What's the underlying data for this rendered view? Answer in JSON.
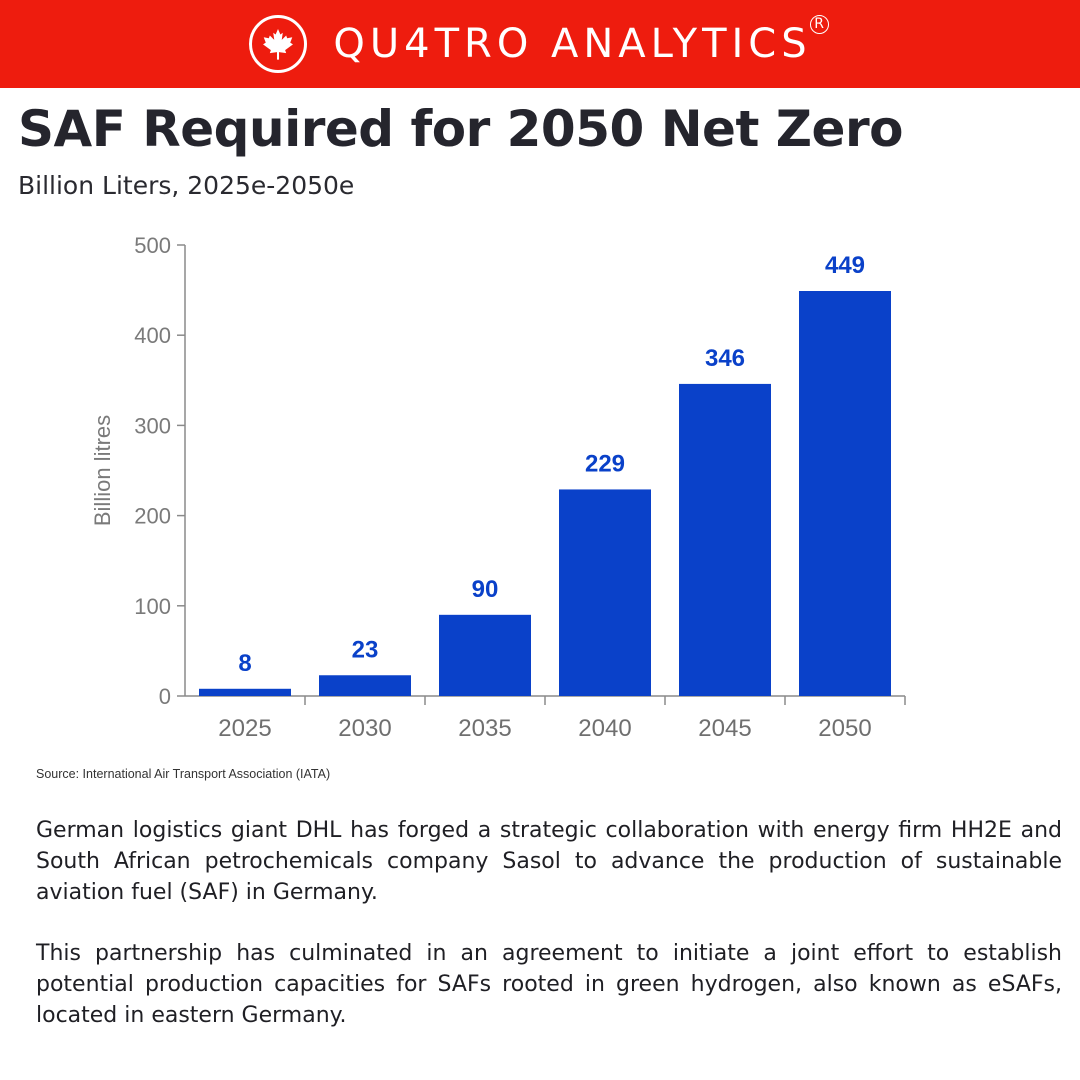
{
  "brand": {
    "name": "QU4TRO ANALYTICS",
    "registered_mark": "R",
    "logo_icon": "maple-leaf-icon"
  },
  "colors": {
    "banner": "#ee1c0e",
    "bar": "#0a41c9",
    "text": "#25252d"
  },
  "title": "SAF Required for 2050 Net Zero",
  "subtitle": "Billion Liters, 2025e-2050e",
  "chart_data": {
    "type": "bar",
    "categories": [
      "2025",
      "2030",
      "2035",
      "2040",
      "2045",
      "2050"
    ],
    "values": [
      8,
      23,
      90,
      229,
      346,
      449
    ],
    "data_labels": [
      "8",
      "23",
      "90",
      "229",
      "346",
      "449"
    ],
    "ylabel": "Billion litres",
    "xlabel": "",
    "ylim": [
      0,
      500
    ],
    "yticks": [
      0,
      100,
      200,
      300,
      400,
      500
    ],
    "grid": false,
    "legend": "none"
  },
  "source": "Source: International Air Transport Association (IATA)",
  "paragraphs": [
    "German logistics giant DHL has forged a strategic collaboration with energy firm HH2E and South African petrochemicals company Sasol to advance the production of sustainable aviation fuel (SAF) in Germany.",
    "This partnership has culminated in an agreement to initiate a joint effort to establish potential production capacities for SAFs rooted in green hydrogen, also known as eSAFs, located in eastern Germany."
  ]
}
